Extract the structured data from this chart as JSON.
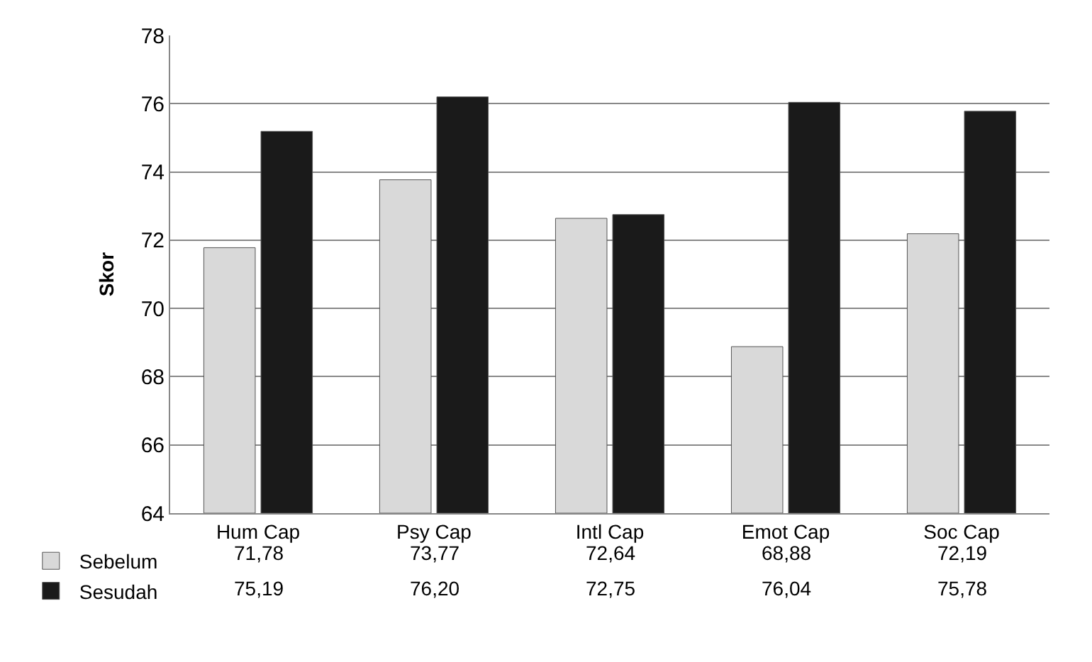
{
  "chart_data": {
    "type": "bar",
    "ylabel": "Skor",
    "categories": [
      "Hum Cap",
      "Psy Cap",
      "Intl Cap",
      "Emot Cap",
      "Soc Cap"
    ],
    "series": [
      {
        "name": "Sebelum",
        "color": "#d9d9d9",
        "values": [
          71.78,
          73.77,
          72.64,
          68.88,
          72.19
        ],
        "value_labels": [
          "71,78",
          "73,77",
          "72,64",
          "68,88",
          "72,19"
        ]
      },
      {
        "name": "Sesudah",
        "color": "#1a1a1a",
        "values": [
          75.19,
          76.2,
          72.75,
          76.04,
          75.78
        ],
        "value_labels": [
          "75,19",
          "76,20",
          "72,75",
          "76,04",
          "75,78"
        ]
      }
    ],
    "ylim": [
      64,
      78
    ],
    "yticks": [
      64,
      66,
      68,
      70,
      72,
      74,
      76,
      78
    ],
    "grid": "y",
    "legend": "bottom left"
  }
}
